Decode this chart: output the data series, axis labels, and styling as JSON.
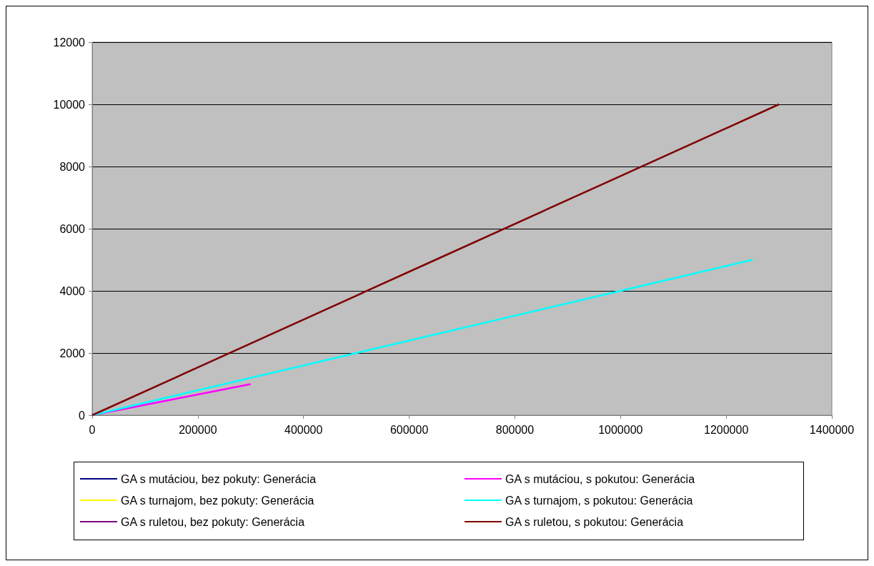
{
  "chart_data": {
    "type": "line",
    "xlim": [
      0,
      1400000
    ],
    "xticks": [
      0,
      200000,
      400000,
      600000,
      800000,
      1000000,
      1200000,
      1400000
    ],
    "ylim": [
      0,
      12000
    ],
    "yticks": [
      0,
      2000,
      4000,
      6000,
      8000,
      10000,
      12000
    ],
    "grid": "y",
    "legend": "bottom",
    "marker": "none",
    "line_style": "solid",
    "series": [
      {
        "name": "GA s mutáciou, bez pokuty: Generácia",
        "color": "#000080"
      },
      {
        "name": "GA s mutáciou, s pokutou: Generácia",
        "color": "#ff00ff",
        "x": [
          0,
          150000,
          300000
        ],
        "values": [
          0,
          500,
          1000
        ]
      },
      {
        "name": "GA s turnajom, bez pokuty: Generácia",
        "color": "#ffff00"
      },
      {
        "name": "GA s turnajom, s pokutou: Generácia",
        "color": "#00ffff",
        "x": [
          0,
          500000,
          1000000,
          1250000
        ],
        "values": [
          0,
          2000,
          4000,
          5000
        ]
      },
      {
        "name": "GA s ruletou, bez pokuty: Generácia",
        "color": "#800080"
      },
      {
        "name": "GA s ruletou, s pokutou: Generácia",
        "color": "#800000",
        "x": [
          0,
          650000,
          1300000
        ],
        "values": [
          0,
          5000,
          10000
        ]
      }
    ]
  }
}
